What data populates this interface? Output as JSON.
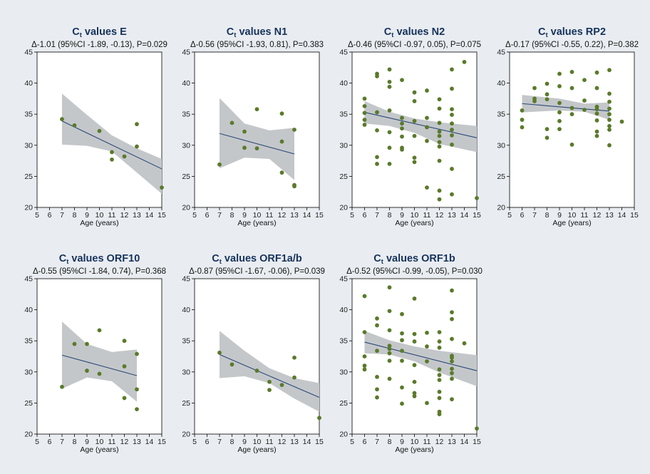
{
  "chart_data": [
    {
      "type": "scatter",
      "title": "values E",
      "subtitle": "Δ-1.01 (95%CI -1.89, -0.13), P=0.029",
      "xlabel": "Age (years)",
      "xlim": [
        5,
        15
      ],
      "ylim": [
        20,
        45
      ],
      "xticks": [
        5,
        6,
        7,
        8,
        9,
        10,
        11,
        12,
        13,
        14,
        15
      ],
      "yticks": [
        20,
        25,
        30,
        35,
        40,
        45
      ],
      "points": [
        [
          7,
          34.2
        ],
        [
          8,
          33.2
        ],
        [
          10,
          32.3
        ],
        [
          11,
          28.9
        ],
        [
          11,
          27.7
        ],
        [
          12,
          28.2
        ],
        [
          13,
          33.4
        ],
        [
          13,
          29.8
        ],
        [
          15,
          23.2
        ]
      ],
      "fit": [
        [
          7,
          33.9
        ],
        [
          15,
          26.2
        ]
      ],
      "ci_upper": [
        [
          7,
          38.3
        ],
        [
          9,
          34.9
        ],
        [
          11,
          31.6
        ],
        [
          13,
          29.5
        ],
        [
          15,
          27.8
        ]
      ],
      "ci_lower": [
        [
          7,
          30.1
        ],
        [
          9,
          29.9
        ],
        [
          11,
          29.0
        ],
        [
          13,
          25.6
        ],
        [
          15,
          22.2
        ]
      ]
    },
    {
      "type": "scatter",
      "title": "values N1",
      "subtitle": "Δ-0.56 (95%CI -1.93, 0.81), P=0.383",
      "xlabel": "Age (years)",
      "xlim": [
        5,
        15
      ],
      "ylim": [
        20,
        45
      ],
      "xticks": [
        5,
        6,
        7,
        8,
        9,
        10,
        11,
        12,
        13,
        14,
        15
      ],
      "yticks": [
        20,
        25,
        30,
        35,
        40,
        45
      ],
      "points": [
        [
          7,
          26.9
        ],
        [
          8,
          33.6
        ],
        [
          9,
          32.2
        ],
        [
          9,
          29.6
        ],
        [
          10,
          35.8
        ],
        [
          10,
          29.5
        ],
        [
          12,
          35.1
        ],
        [
          12,
          30.6
        ],
        [
          12,
          25.6
        ],
        [
          13,
          32.5
        ],
        [
          13,
          23.6
        ],
        [
          13,
          23.4
        ]
      ],
      "fit": [
        [
          7,
          31.9
        ],
        [
          13,
          28.6
        ]
      ],
      "ci_upper": [
        [
          7,
          37.6
        ],
        [
          9,
          33.5
        ],
        [
          11,
          32.4
        ],
        [
          13,
          32.8
        ]
      ],
      "ci_lower": [
        [
          7,
          26.3
        ],
        [
          9,
          28.0
        ],
        [
          11,
          27.8
        ],
        [
          13,
          24.4
        ]
      ]
    },
    {
      "type": "scatter",
      "title": "values N2",
      "subtitle": "Δ-0.46 (95%CI -0.97, 0.05), P=0.075",
      "xlabel": "Age (years)",
      "xlim": [
        5,
        15
      ],
      "ylim": [
        20,
        45
      ],
      "xticks": [
        5,
        6,
        7,
        8,
        9,
        10,
        11,
        12,
        13,
        14,
        15
      ],
      "yticks": [
        20,
        25,
        30,
        35,
        40,
        45
      ],
      "points": [
        [
          6,
          37.5
        ],
        [
          6,
          36.3
        ],
        [
          6,
          35.2
        ],
        [
          6,
          34.1
        ],
        [
          6,
          33.3
        ],
        [
          7,
          41.5
        ],
        [
          7,
          41.1
        ],
        [
          7,
          35.3
        ],
        [
          7,
          32.4
        ],
        [
          7,
          28.1
        ],
        [
          7,
          27.0
        ],
        [
          8,
          42.2
        ],
        [
          8,
          40.2
        ],
        [
          8,
          39.4
        ],
        [
          8,
          35.6
        ],
        [
          8,
          32.1
        ],
        [
          8,
          29.6
        ],
        [
          8,
          27.0
        ],
        [
          9,
          40.5
        ],
        [
          9,
          34.4
        ],
        [
          9,
          33.5
        ],
        [
          9,
          32.7
        ],
        [
          9,
          31.4
        ],
        [
          9,
          29.6
        ],
        [
          9,
          29.3
        ],
        [
          10,
          38.5
        ],
        [
          10,
          37.1
        ],
        [
          10,
          33.9
        ],
        [
          10,
          31.5
        ],
        [
          10,
          28.0
        ],
        [
          10,
          27.3
        ],
        [
          11,
          38.8
        ],
        [
          11,
          34.4
        ],
        [
          11,
          32.9
        ],
        [
          11,
          30.7
        ],
        [
          11,
          23.2
        ],
        [
          12,
          37.4
        ],
        [
          12,
          35.9
        ],
        [
          12,
          33.6
        ],
        [
          12,
          32.2
        ],
        [
          12,
          31.5
        ],
        [
          12,
          30.5
        ],
        [
          12,
          29.8
        ],
        [
          12,
          27.5
        ],
        [
          12,
          22.7
        ],
        [
          12,
          21.3
        ],
        [
          13,
          42.2
        ],
        [
          13,
          39.1
        ],
        [
          13,
          35.8
        ],
        [
          13,
          34.9
        ],
        [
          13,
          33.5
        ],
        [
          13,
          32.5
        ],
        [
          13,
          31.6
        ],
        [
          13,
          30.1
        ],
        [
          13,
          26.2
        ],
        [
          13,
          22.1
        ],
        [
          14,
          43.4
        ],
        [
          15,
          21.5
        ]
      ],
      "fit": [
        [
          6,
          35.3
        ],
        [
          15,
          31.2
        ]
      ],
      "ci_upper": [
        [
          6,
          37.1
        ],
        [
          8,
          35.4
        ],
        [
          10,
          34.3
        ],
        [
          12,
          33.7
        ],
        [
          15,
          33.1
        ]
      ],
      "ci_lower": [
        [
          6,
          33.5
        ],
        [
          8,
          33.1
        ],
        [
          10,
          32.0
        ],
        [
          12,
          30.2
        ],
        [
          15,
          28.9
        ]
      ]
    },
    {
      "type": "scatter",
      "title": "values RP2",
      "subtitle": "Δ-0.17 (95%CI -0.55, 0.22), P=0.382",
      "xlabel": "Age (years)",
      "xlim": [
        5,
        15
      ],
      "ylim": [
        20,
        45
      ],
      "xticks": [
        5,
        6,
        7,
        8,
        9,
        10,
        11,
        12,
        13,
        14,
        15
      ],
      "yticks": [
        20,
        25,
        30,
        35,
        40,
        45
      ],
      "points": [
        [
          6,
          35.6
        ],
        [
          6,
          34.1
        ],
        [
          6,
          32.9
        ],
        [
          7,
          39.2
        ],
        [
          7,
          37.5
        ],
        [
          7,
          37.1
        ],
        [
          8,
          39.9
        ],
        [
          8,
          38.2
        ],
        [
          8,
          37.4
        ],
        [
          8,
          32.6
        ],
        [
          8,
          31.2
        ],
        [
          9,
          41.5
        ],
        [
          9,
          39.5
        ],
        [
          9,
          36.8
        ],
        [
          9,
          35.3
        ],
        [
          9,
          33.9
        ],
        [
          9,
          32.6
        ],
        [
          10,
          41.8
        ],
        [
          10,
          39.2
        ],
        [
          10,
          36.0
        ],
        [
          10,
          35.0
        ],
        [
          10,
          30.1
        ],
        [
          11,
          40.5
        ],
        [
          11,
          37.2
        ],
        [
          11,
          35.7
        ],
        [
          12,
          41.7
        ],
        [
          12,
          39.2
        ],
        [
          12,
          36.2
        ],
        [
          12,
          35.8
        ],
        [
          12,
          35.1
        ],
        [
          12,
          34.0
        ],
        [
          12,
          32.2
        ],
        [
          12,
          31.5
        ],
        [
          13,
          42.1
        ],
        [
          13,
          38.3
        ],
        [
          13,
          37.0
        ],
        [
          13,
          35.9
        ],
        [
          13,
          35.0
        ],
        [
          13,
          34.1
        ],
        [
          13,
          33.1
        ],
        [
          13,
          32.5
        ],
        [
          13,
          30.0
        ],
        [
          14,
          33.8
        ]
      ],
      "fit": [
        [
          6,
          36.7
        ],
        [
          13,
          35.5
        ]
      ],
      "ci_upper": [
        [
          6,
          38.1
        ],
        [
          9,
          37.5
        ],
        [
          11,
          36.7
        ],
        [
          13,
          36.9
        ]
      ],
      "ci_lower": [
        [
          6,
          35.3
        ],
        [
          9,
          35.6
        ],
        [
          11,
          35.4
        ],
        [
          13,
          34.1
        ]
      ]
    },
    {
      "type": "scatter",
      "title": "values ORF10",
      "subtitle": "Δ-0.55 (95%CI -1.84, 0.74), P=0.368",
      "xlabel": "Age (years)",
      "xlim": [
        5,
        15
      ],
      "ylim": [
        20,
        45
      ],
      "xticks": [
        5,
        6,
        7,
        8,
        9,
        10,
        11,
        12,
        13,
        14,
        15
      ],
      "yticks": [
        20,
        25,
        30,
        35,
        40,
        45
      ],
      "points": [
        [
          7,
          27.6
        ],
        [
          8,
          34.5
        ],
        [
          9,
          34.5
        ],
        [
          9,
          30.2
        ],
        [
          10,
          36.7
        ],
        [
          10,
          29.7
        ],
        [
          12,
          35.0
        ],
        [
          12,
          30.9
        ],
        [
          12,
          25.8
        ],
        [
          13,
          32.9
        ],
        [
          13,
          27.2
        ],
        [
          13,
          24.0
        ]
      ],
      "fit": [
        [
          7,
          32.7
        ],
        [
          13,
          29.4
        ]
      ],
      "ci_upper": [
        [
          7,
          38.1
        ],
        [
          9,
          34.5
        ],
        [
          11,
          33.2
        ],
        [
          13,
          33.6
        ]
      ],
      "ci_lower": [
        [
          7,
          27.3
        ],
        [
          9,
          29.1
        ],
        [
          11,
          28.5
        ],
        [
          13,
          25.2
        ]
      ]
    },
    {
      "type": "scatter",
      "title": "values ORF1a/b",
      "subtitle": "Δ-0.87 (95%CI -1.67, -0.06), P=0.039",
      "xlabel": "Age (years)",
      "xlim": [
        5,
        15
      ],
      "ylim": [
        20,
        45
      ],
      "xticks": [
        5,
        6,
        7,
        8,
        9,
        10,
        11,
        12,
        13,
        14,
        15
      ],
      "yticks": [
        20,
        25,
        30,
        35,
        40,
        45
      ],
      "points": [
        [
          7,
          33.1
        ],
        [
          8,
          31.2
        ],
        [
          10,
          30.2
        ],
        [
          11,
          28.4
        ],
        [
          11,
          27.1
        ],
        [
          12,
          27.9
        ],
        [
          13,
          32.3
        ],
        [
          13,
          29.1
        ],
        [
          15,
          22.6
        ]
      ],
      "fit": [
        [
          7,
          32.8
        ],
        [
          15,
          25.9
        ]
      ],
      "ci_upper": [
        [
          7,
          36.6
        ],
        [
          9,
          33.4
        ],
        [
          11,
          30.6
        ],
        [
          13,
          29.0
        ],
        [
          15,
          28.2
        ]
      ],
      "ci_lower": [
        [
          7,
          29.0
        ],
        [
          9,
          29.3
        ],
        [
          11,
          28.2
        ],
        [
          13,
          25.7
        ],
        [
          15,
          23.6
        ]
      ]
    },
    {
      "type": "scatter",
      "title": "values ORF1b",
      "subtitle": "Δ-0.52 (95%CI -0.99, -0.05), P=0.030",
      "xlabel": "Age (years)",
      "xlim": [
        5,
        15
      ],
      "ylim": [
        20,
        45
      ],
      "xticks": [
        5,
        6,
        7,
        8,
        9,
        10,
        11,
        12,
        13,
        14,
        15
      ],
      "yticks": [
        20,
        25,
        30,
        35,
        40,
        45
      ],
      "points": [
        [
          6,
          42.2
        ],
        [
          6,
          36.4
        ],
        [
          6,
          32.5
        ],
        [
          6,
          31.0
        ],
        [
          6,
          30.4
        ],
        [
          7,
          38.6
        ],
        [
          7,
          37.5
        ],
        [
          7,
          33.4
        ],
        [
          7,
          29.2
        ],
        [
          7,
          27.2
        ],
        [
          7,
          25.9
        ],
        [
          8,
          43.6
        ],
        [
          8,
          39.8
        ],
        [
          8,
          36.7
        ],
        [
          8,
          34.2
        ],
        [
          8,
          33.7
        ],
        [
          8,
          33.0
        ],
        [
          8,
          31.8
        ],
        [
          8,
          28.9
        ],
        [
          9,
          39.3
        ],
        [
          9,
          36.2
        ],
        [
          9,
          35.1
        ],
        [
          9,
          33.4
        ],
        [
          9,
          31.8
        ],
        [
          9,
          27.5
        ],
        [
          9,
          24.9
        ],
        [
          10,
          41.8
        ],
        [
          10,
          36.1
        ],
        [
          10,
          34.9
        ],
        [
          10,
          31.1
        ],
        [
          10,
          28.4
        ],
        [
          10,
          26.6
        ],
        [
          10,
          26.1
        ],
        [
          11,
          36.3
        ],
        [
          11,
          34.1
        ],
        [
          11,
          31.7
        ],
        [
          11,
          25.0
        ],
        [
          12,
          36.4
        ],
        [
          12,
          34.9
        ],
        [
          12,
          33.9
        ],
        [
          12,
          30.4
        ],
        [
          12,
          29.5
        ],
        [
          12,
          28.7
        ],
        [
          12,
          26.8
        ],
        [
          12,
          25.8
        ],
        [
          12,
          23.6
        ],
        [
          12,
          23.2
        ],
        [
          13,
          43.1
        ],
        [
          13,
          39.6
        ],
        [
          13,
          38.5
        ],
        [
          13,
          35.3
        ],
        [
          13,
          32.6
        ],
        [
          13,
          32.3
        ],
        [
          13,
          31.7
        ],
        [
          13,
          30.5
        ],
        [
          13,
          29.8
        ],
        [
          13,
          28.9
        ],
        [
          13,
          25.6
        ],
        [
          14,
          34.6
        ],
        [
          15,
          20.9
        ]
      ],
      "fit": [
        [
          6,
          34.8
        ],
        [
          15,
          30.2
        ]
      ],
      "ci_upper": [
        [
          6,
          36.6
        ],
        [
          8,
          35.1
        ],
        [
          10,
          34.1
        ],
        [
          12,
          33.4
        ],
        [
          15,
          32.7
        ]
      ],
      "ci_lower": [
        [
          6,
          33.0
        ],
        [
          8,
          32.8
        ],
        [
          10,
          31.7
        ],
        [
          12,
          29.9
        ],
        [
          15,
          27.7
        ]
      ]
    }
  ],
  "style": {
    "point_color": "#5a7a2a",
    "line_color": "#2b4a78",
    "ci_color": "#c4c7ca",
    "background": "#e9edf1",
    "plot_background": "#ffffff",
    "title_color": "#16325c"
  },
  "title_prefix": "C",
  "title_subscript": "t"
}
